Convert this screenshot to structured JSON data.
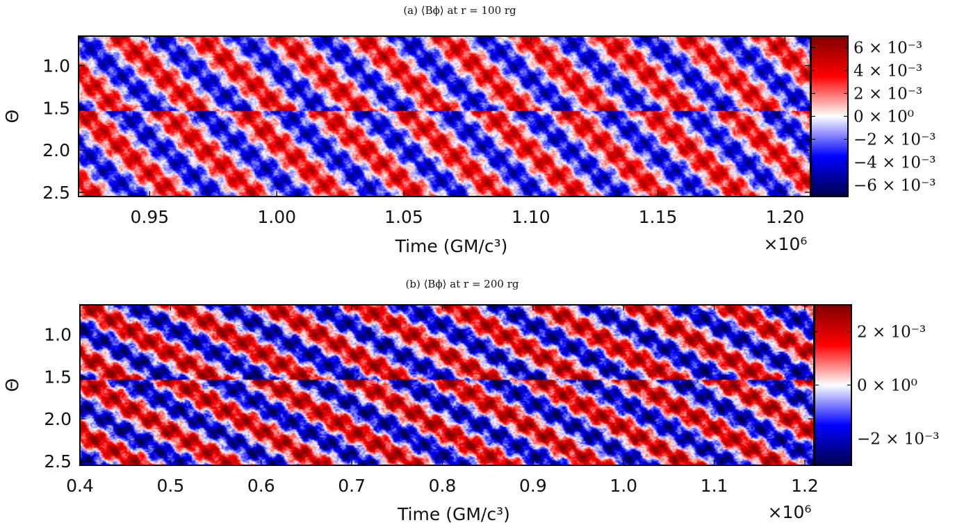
{
  "chart_data": [
    {
      "type": "heatmap",
      "title": "(a) ⟨Bϕ⟩ at r = 100 rg",
      "xlabel": "Time (GM/c³)",
      "ylabel": "Θ",
      "x_multiplier": "×10⁶",
      "xlim": [
        0.922,
        1.21
      ],
      "ylim": [
        0.65,
        2.55
      ],
      "y_inverted": true,
      "x_ticks": [
        {
          "value": 0.95,
          "label": "0.95"
        },
        {
          "value": 1.0,
          "label": "1.00"
        },
        {
          "value": 1.05,
          "label": "1.05"
        },
        {
          "value": 1.1,
          "label": "1.10"
        },
        {
          "value": 1.15,
          "label": "1.15"
        },
        {
          "value": 1.2,
          "label": "1.20"
        }
      ],
      "y_ticks": [
        {
          "value": 1.0,
          "label": "1.0"
        },
        {
          "value": 1.5,
          "label": "1.5"
        },
        {
          "value": 2.0,
          "label": "2.0"
        },
        {
          "value": 2.5,
          "label": "2.5"
        }
      ],
      "colormap": "seismic",
      "colormap_colors": [
        "#00004c",
        "#0000ff",
        "#ffffff",
        "#ff0000",
        "#800000"
      ],
      "vmin": -0.007,
      "vmax": 0.007,
      "colorbar_ticks": [
        {
          "value": 0.006,
          "label": "6 × 10⁻³"
        },
        {
          "value": 0.004,
          "label": "4 × 10⁻³"
        },
        {
          "value": 0.002,
          "label": "2 × 10⁻³"
        },
        {
          "value": 0.0,
          "label": "0 × 10⁰"
        },
        {
          "value": -0.002,
          "label": "−2 × 10⁻³"
        },
        {
          "value": -0.004,
          "label": "−4 × 10⁻³"
        },
        {
          "value": -0.006,
          "label": "−6 × 10⁻³"
        }
      ]
    },
    {
      "type": "heatmap",
      "title": "(b) ⟨Bϕ⟩ at r = 200 rg",
      "xlabel": "Time (GM/c³)",
      "ylabel": "Θ",
      "x_multiplier": "×10⁶",
      "xlim": [
        0.4,
        1.21
      ],
      "ylim": [
        0.65,
        2.55
      ],
      "y_inverted": true,
      "x_ticks": [
        {
          "value": 0.4,
          "label": "0.4"
        },
        {
          "value": 0.5,
          "label": "0.5"
        },
        {
          "value": 0.6,
          "label": "0.6"
        },
        {
          "value": 0.7,
          "label": "0.7"
        },
        {
          "value": 0.8,
          "label": "0.8"
        },
        {
          "value": 0.9,
          "label": "0.9"
        },
        {
          "value": 1.0,
          "label": "1.0"
        },
        {
          "value": 1.1,
          "label": "1.1"
        },
        {
          "value": 1.2,
          "label": "1.2"
        }
      ],
      "y_ticks": [
        {
          "value": 1.0,
          "label": "1.0"
        },
        {
          "value": 1.5,
          "label": "1.5"
        },
        {
          "value": 2.0,
          "label": "2.0"
        },
        {
          "value": 2.5,
          "label": "2.5"
        }
      ],
      "colormap": "seismic",
      "colormap_colors": [
        "#00004c",
        "#0000ff",
        "#ffffff",
        "#ff0000",
        "#800000"
      ],
      "vmin": -0.003,
      "vmax": 0.003,
      "colorbar_ticks": [
        {
          "value": 0.002,
          "label": "2 × 10⁻³"
        },
        {
          "value": 0.0,
          "label": "0 × 10⁰"
        },
        {
          "value": -0.002,
          "label": "−2 × 10⁻³"
        }
      ]
    }
  ]
}
